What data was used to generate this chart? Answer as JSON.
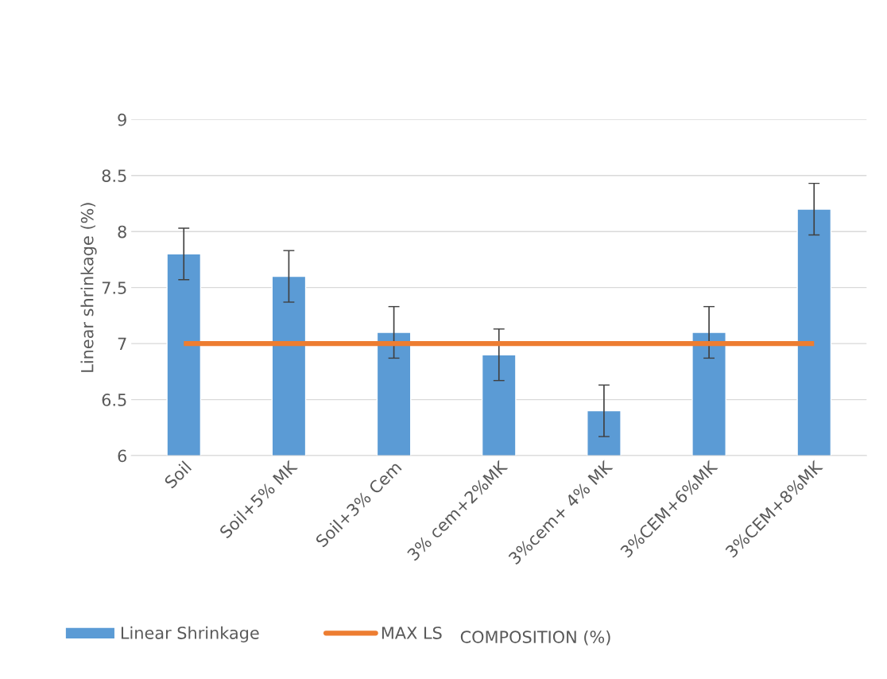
{
  "chart_data": {
    "type": "bar",
    "xlabel": "COMPOSITION (%)",
    "ylabel": "Linear shrinkage (%)",
    "categories": [
      "Soil",
      "Soil+5% MK",
      "Soil+3% Cem",
      "3% cem+2%MK",
      "3%cem+ 4% MK",
      "3%CEM+6%MK",
      "3%CEM+8%MK"
    ],
    "series": [
      {
        "name": "Linear Shrinkage",
        "color": "#5b9bd5",
        "values": [
          7.8,
          7.6,
          7.1,
          6.9,
          6.4,
          7.1,
          8.2
        ],
        "errors": [
          0.23,
          0.23,
          0.23,
          0.23,
          0.23,
          0.23,
          0.23
        ]
      },
      {
        "name": "MAX LS",
        "type": "line",
        "color": "#ed7d31",
        "values": [
          7,
          7,
          7,
          7,
          7,
          7,
          7
        ]
      }
    ],
    "ylim": [
      6,
      9
    ],
    "yticks": [
      6,
      6.5,
      7,
      7.5,
      8,
      8.5,
      9
    ],
    "grid": "y",
    "legend": "bottom"
  }
}
